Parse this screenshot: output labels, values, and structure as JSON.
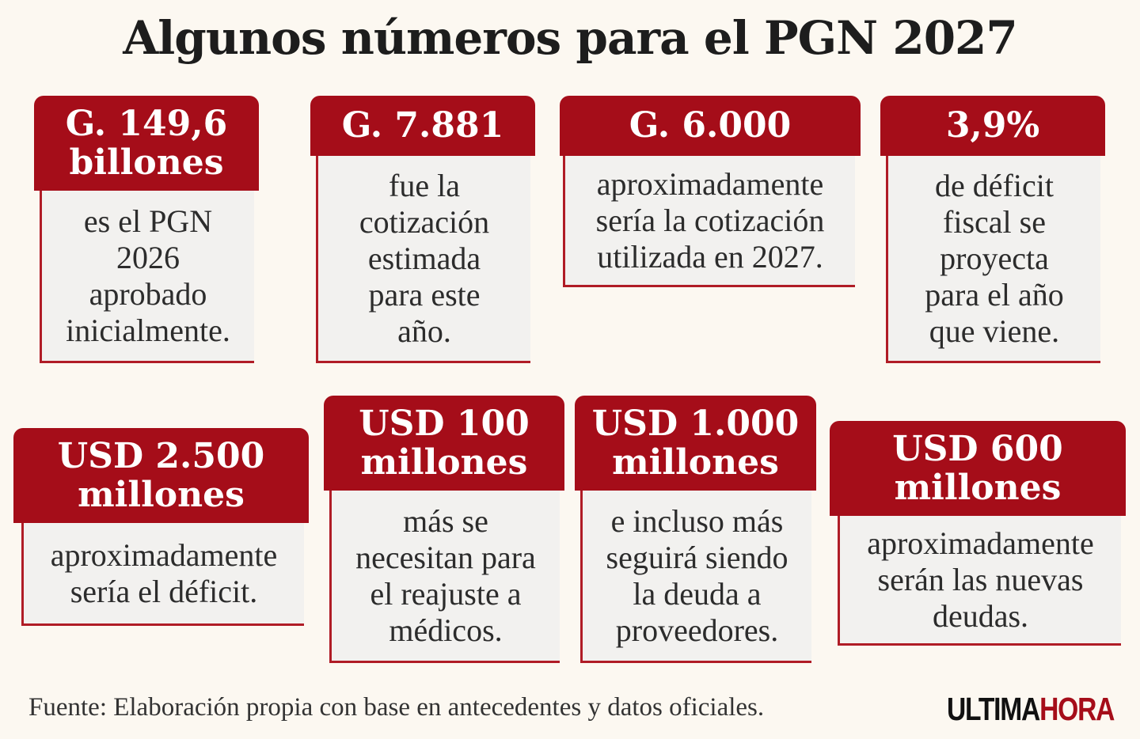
{
  "title": "Algunos números para el PGN 2027",
  "cards": [
    {
      "value": "G. 149,6\nbillones",
      "description": "es el PGN\n2026\naprobado\ninicialmente."
    },
    {
      "value": "G. 7.881",
      "description": "fue la\ncotización\nestimada\npara este\naño."
    },
    {
      "value": "G. 6.000",
      "description": "aproximadamente\nsería la cotización\nutilizada en 2027."
    },
    {
      "value": "3,9%",
      "description": "de déficit\nfiscal se\nproyecta\npara el año\nque viene."
    },
    {
      "value": "USD 2.500\nmillones",
      "description": "aproximadamente\nsería el déficit."
    },
    {
      "value": "USD 100\nmillones",
      "description": "más se\nnecesitan para\nel reajuste a\nmédicos."
    },
    {
      "value": "USD 1.000\nmillones",
      "description": "e incluso más\nseguirá siendo\nla deuda a\nproveedores."
    },
    {
      "value": "USD 600\nmillones",
      "description": "aproximadamente\nserán las nuevas\ndeudas."
    }
  ],
  "footer": {
    "source": "Fuente: Elaboración propia con base en antecedentes y datos oficiales.",
    "logo_part1": "ULTIMA",
    "logo_part2": "HORA"
  },
  "colors": {
    "accent_red": "#a50d19",
    "background": "#fcf8f1",
    "card_body": "#f2f1ef"
  }
}
